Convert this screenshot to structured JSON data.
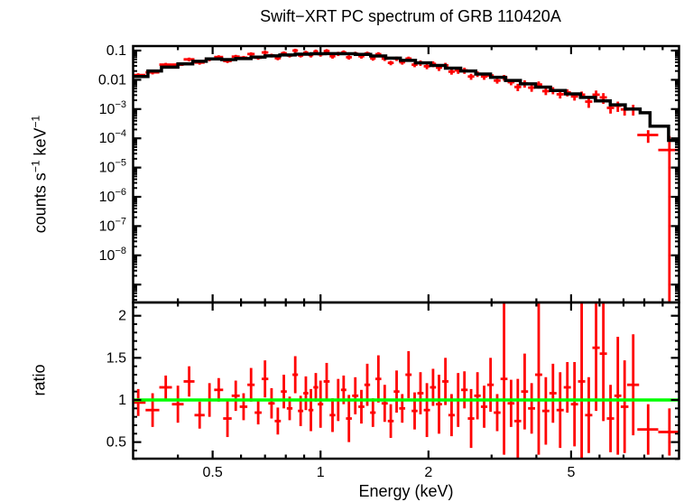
{
  "title": "Swift−XRT PC spectrum of GRB 110420A",
  "colors": {
    "data": "#ff0000",
    "model": "#000000",
    "reference": "#00ff00",
    "axes": "#000000",
    "background": "#ffffff"
  },
  "x_axis": {
    "label": "Energy (keV)",
    "scale": "log",
    "min": 0.3,
    "max": 10,
    "major_ticks": [
      0.5,
      1,
      2,
      5
    ],
    "tick_labels": [
      "0.5",
      "1",
      "2",
      "5"
    ],
    "minor_ticks": [
      0.4,
      0.6,
      0.7,
      0.8,
      0.9,
      3,
      4,
      6,
      7,
      8,
      9
    ]
  },
  "chart_data": [
    {
      "type": "scatter",
      "name": "spectrum",
      "title": "Swift−XRT PC spectrum of GRB 110420A",
      "xlabel": "Energy (keV)",
      "ylabel": "counts s−1 keV−1",
      "ylabel_parts": [
        "counts s",
        "−1",
        " keV",
        "−1"
      ],
      "xscale": "log",
      "yscale": "log",
      "xlim": [
        0.3,
        10
      ],
      "ylim": [
        2.5e-10,
        0.143
      ],
      "y_major_tick_values": [
        0.1,
        0.01,
        0.001,
        0.0001,
        1e-05,
        1e-06,
        1e-07,
        1e-08
      ],
      "y_tick_labels": [
        {
          "t": "0.1",
          "v": 0.1
        },
        {
          "t": "0.01",
          "v": 0.01
        },
        {
          "b": "10",
          "e": "−3",
          "v": 0.001
        },
        {
          "b": "10",
          "e": "−4",
          "v": 0.0001
        },
        {
          "b": "10",
          "e": "−5",
          "v": 1e-05
        },
        {
          "b": "10",
          "e": "−6",
          "v": 1e-06
        },
        {
          "b": "10",
          "e": "−7",
          "v": 1e-07
        },
        {
          "b": "10",
          "e": "−8",
          "v": 1e-08
        }
      ],
      "model_step": [
        [
          0.3,
          0.013
        ],
        [
          0.33,
          0.02
        ],
        [
          0.36,
          0.027
        ],
        [
          0.4,
          0.035
        ],
        [
          0.44,
          0.043
        ],
        [
          0.48,
          0.052
        ],
        [
          0.53,
          0.049
        ],
        [
          0.58,
          0.053
        ],
        [
          0.64,
          0.06
        ],
        [
          0.7,
          0.066
        ],
        [
          0.77,
          0.071
        ],
        [
          0.85,
          0.075
        ],
        [
          0.94,
          0.078
        ],
        [
          1.03,
          0.079
        ],
        [
          1.14,
          0.078
        ],
        [
          1.25,
          0.074
        ],
        [
          1.38,
          0.065
        ],
        [
          1.52,
          0.055
        ],
        [
          1.67,
          0.046
        ],
        [
          1.84,
          0.038
        ],
        [
          2.03,
          0.031
        ],
        [
          2.23,
          0.025
        ],
        [
          2.46,
          0.02
        ],
        [
          2.71,
          0.0158
        ],
        [
          2.98,
          0.0122
        ],
        [
          3.28,
          0.0095
        ],
        [
          3.61,
          0.0073
        ],
        [
          3.98,
          0.0056
        ],
        [
          4.38,
          0.0043
        ],
        [
          4.82,
          0.0033
        ],
        [
          5.31,
          0.0025
        ],
        [
          5.84,
          0.0019
        ],
        [
          6.43,
          0.0014
        ],
        [
          7.08,
          0.001
        ],
        [
          7.79,
          0.00075
        ],
        [
          8.3,
          0.00026
        ],
        [
          9.35,
          8.5e-05
        ],
        [
          10.0,
          8.5e-05
        ]
      ],
      "points": [
        [
          0.31,
          0.0145,
          0.0022
        ],
        [
          0.34,
          0.018,
          0.0027
        ],
        [
          0.37,
          0.033,
          0.005
        ],
        [
          0.4,
          0.033,
          0.005
        ],
        [
          0.43,
          0.05,
          0.0075
        ],
        [
          0.46,
          0.039,
          0.006
        ],
        [
          0.49,
          0.051,
          0.0077
        ],
        [
          0.52,
          0.06,
          0.009
        ],
        [
          0.55,
          0.044,
          0.0066
        ],
        [
          0.58,
          0.062,
          0.0093
        ],
        [
          0.61,
          0.057,
          0.0086
        ],
        [
          0.64,
          0.076,
          0.011
        ],
        [
          0.67,
          0.057,
          0.0086
        ],
        [
          0.7,
          0.086,
          0.013
        ],
        [
          0.73,
          0.068,
          0.01
        ],
        [
          0.76,
          0.055,
          0.0083
        ],
        [
          0.79,
          0.081,
          0.012
        ],
        [
          0.82,
          0.068,
          0.01
        ],
        [
          0.85,
          0.1,
          0.015
        ],
        [
          0.88,
          0.068,
          0.01
        ],
        [
          0.91,
          0.084,
          0.014
        ],
        [
          0.94,
          0.07,
          0.012
        ],
        [
          0.97,
          0.092,
          0.016
        ],
        [
          1.0,
          0.075,
          0.013
        ],
        [
          1.04,
          0.096,
          0.016
        ],
        [
          1.08,
          0.064,
          0.011
        ],
        [
          1.12,
          0.078,
          0.013
        ],
        [
          1.16,
          0.086,
          0.015
        ],
        [
          1.2,
          0.059,
          0.01
        ],
        [
          1.25,
          0.078,
          0.013
        ],
        [
          1.3,
          0.064,
          0.011
        ],
        [
          1.35,
          0.079,
          0.013
        ],
        [
          1.4,
          0.054,
          0.009
        ],
        [
          1.45,
          0.075,
          0.013
        ],
        [
          1.51,
          0.053,
          0.009
        ],
        [
          1.57,
          0.038,
          0.0065
        ],
        [
          1.63,
          0.053,
          0.009
        ],
        [
          1.69,
          0.04,
          0.007
        ],
        [
          1.76,
          0.053,
          0.009
        ],
        [
          1.83,
          0.033,
          0.006
        ],
        [
          1.9,
          0.038,
          0.008
        ],
        [
          1.98,
          0.029,
          0.006
        ],
        [
          2.06,
          0.035,
          0.008
        ],
        [
          2.14,
          0.026,
          0.006
        ],
        [
          2.23,
          0.031,
          0.007
        ],
        [
          2.32,
          0.019,
          0.004
        ],
        [
          2.42,
          0.021,
          0.005
        ],
        [
          2.52,
          0.021,
          0.005
        ],
        [
          2.63,
          0.013,
          0.003
        ],
        [
          2.74,
          0.016,
          0.0035
        ],
        [
          2.86,
          0.013,
          0.003
        ],
        [
          2.98,
          0.014,
          0.003
        ],
        [
          3.11,
          0.0094,
          0.002
        ],
        [
          3.25,
          0.012,
          0.0026
        ],
        [
          3.4,
          0.0083,
          0.0018
        ],
        [
          3.55,
          0.0057,
          0.0016
        ],
        [
          3.71,
          0.0075,
          0.0021
        ],
        [
          3.88,
          0.0054,
          0.0015
        ],
        [
          4.06,
          0.0069,
          0.0019
        ],
        [
          4.25,
          0.0041,
          0.0011
        ],
        [
          4.45,
          0.0044,
          0.0012
        ],
        [
          4.66,
          0.0032,
          0.0009
        ],
        [
          4.88,
          0.0037,
          0.001
        ],
        [
          5.11,
          0.0027,
          0.00075
        ],
        [
          5.35,
          0.0031,
          0.00087
        ],
        [
          5.6,
          0.0018,
          0.0007
        ],
        [
          5.87,
          0.0031,
          0.0012
        ],
        [
          6.15,
          0.0025,
          0.001
        ],
        [
          6.44,
          0.0011,
          0.0004
        ],
        [
          6.75,
          0.0013,
          0.0005
        ],
        [
          7.05,
          0.00097,
          0.00037
        ],
        [
          7.45,
          0.001,
          0.0004
        ],
        {
          "E": 8.2,
          "y": 0.00013,
          "err": 6e-05,
          "xerr": 0.55
        },
        {
          "E": 9.4,
          "y": 4e-05,
          "err_up": 8e-05,
          "err_lo": 4e-05,
          "xerr": 0.65
        }
      ]
    },
    {
      "type": "scatter",
      "name": "ratio",
      "ylabel": "ratio",
      "xscale": "log",
      "yscale": "linear",
      "xlim": [
        0.3,
        10
      ],
      "ylim": [
        0.28,
        2.16
      ],
      "y_major_ticks": [
        0.5,
        1,
        1.5,
        2
      ],
      "y_tick_labels": [
        "0.5",
        "1",
        "1.5",
        "2"
      ],
      "y_minor_step": 0.1,
      "reference_line": {
        "y": 1,
        "color": "#00ff00"
      },
      "points": [
        [
          0.31,
          0.97,
          0.16
        ],
        [
          0.34,
          0.88,
          0.2
        ],
        [
          0.37,
          1.15,
          0.14
        ],
        [
          0.4,
          0.95,
          0.22
        ],
        [
          0.43,
          1.22,
          0.18
        ],
        [
          0.46,
          0.82,
          0.16
        ],
        [
          0.49,
          1.0,
          0.2
        ],
        [
          0.52,
          1.12,
          0.14
        ],
        [
          0.55,
          0.78,
          0.22
        ],
        [
          0.58,
          1.05,
          0.18
        ],
        [
          0.61,
          0.92,
          0.16
        ],
        [
          0.64,
          1.18,
          0.2
        ],
        [
          0.67,
          0.85,
          0.14
        ],
        [
          0.7,
          1.25,
          0.22
        ],
        [
          0.73,
          0.96,
          0.18
        ],
        [
          0.76,
          0.75,
          0.16
        ],
        [
          0.79,
          1.1,
          0.2
        ],
        [
          0.82,
          0.9,
          0.14
        ],
        [
          0.85,
          1.3,
          0.22
        ],
        [
          0.88,
          0.87,
          0.18
        ],
        [
          0.91,
          1.08,
          0.2
        ],
        [
          0.94,
          0.88,
          0.25
        ],
        [
          0.97,
          1.15,
          0.17
        ],
        [
          1.0,
          0.95,
          0.28
        ],
        [
          1.04,
          1.22,
          0.22
        ],
        [
          1.08,
          0.82,
          0.2
        ],
        [
          1.12,
          1.0,
          0.25
        ],
        [
          1.16,
          1.12,
          0.17
        ],
        [
          1.2,
          0.78,
          0.28
        ],
        [
          1.25,
          1.05,
          0.22
        ],
        [
          1.3,
          0.92,
          0.2
        ],
        [
          1.35,
          1.18,
          0.25
        ],
        [
          1.4,
          0.85,
          0.17
        ],
        [
          1.45,
          1.25,
          0.28
        ],
        [
          1.51,
          0.96,
          0.22
        ],
        [
          1.57,
          0.75,
          0.2
        ],
        [
          1.63,
          1.1,
          0.25
        ],
        [
          1.69,
          0.9,
          0.17
        ],
        [
          1.76,
          1.3,
          0.28
        ],
        [
          1.83,
          0.87,
          0.22
        ],
        [
          1.9,
          1.08,
          0.25
        ],
        [
          1.98,
          0.88,
          0.32
        ],
        [
          2.06,
          1.15,
          0.22
        ],
        [
          2.14,
          0.95,
          0.35
        ],
        [
          2.23,
          1.22,
          0.28
        ],
        [
          2.32,
          0.82,
          0.25
        ],
        [
          2.42,
          1.0,
          0.32
        ],
        [
          2.52,
          1.12,
          0.22
        ],
        [
          2.63,
          0.78,
          0.35
        ],
        [
          2.74,
          1.05,
          0.28
        ],
        [
          2.86,
          0.92,
          0.25
        ],
        [
          2.98,
          1.18,
          0.32
        ],
        [
          3.11,
          0.85,
          0.22
        ],
        [
          3.25,
          1.25,
          0.9
        ],
        [
          3.4,
          0.96,
          0.28
        ],
        [
          3.55,
          0.75,
          0.5
        ],
        [
          3.71,
          1.1,
          0.45
        ],
        [
          3.88,
          0.9,
          0.3
        ],
        [
          4.06,
          1.3,
          0.95
        ],
        [
          4.25,
          0.87,
          0.4
        ],
        [
          4.45,
          1.08,
          0.35
        ],
        [
          4.66,
          0.88,
          0.45
        ],
        [
          4.88,
          1.15,
          0.3
        ],
        [
          5.11,
          0.95,
          0.5
        ],
        [
          5.35,
          1.22,
          1.0
        ],
        [
          5.6,
          0.82,
          0.45
        ],
        [
          5.87,
          1.62,
          0.75
        ],
        [
          6.15,
          1.55,
          0.8
        ],
        [
          6.44,
          0.78,
          0.4
        ],
        [
          6.75,
          1.05,
          0.7
        ],
        [
          7.05,
          0.92,
          0.55
        ],
        [
          7.45,
          1.18,
          0.6
        ],
        {
          "E": 8.2,
          "y": 0.65,
          "err": 0.3,
          "xerr": 0.55
        },
        {
          "E": 9.4,
          "y": 0.62,
          "err": 0.28,
          "xerr": 0.65
        }
      ]
    }
  ]
}
